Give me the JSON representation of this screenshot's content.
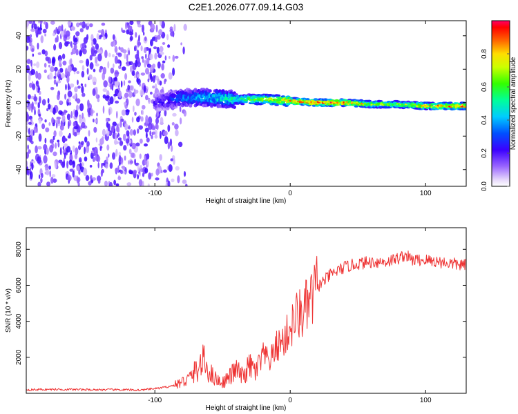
{
  "title": "C2E1.2026.077.09.14.G03",
  "chart_data": [
    {
      "type": "heatmap",
      "xlabel": "Height of straight line (km)",
      "ylabel": "Frequency (Hz)",
      "xlim": [
        -195,
        130
      ],
      "ylim": [
        -50,
        49
      ],
      "xticks": [
        -100,
        0,
        100
      ],
      "xtick_labels": [
        "-100",
        "0",
        "100"
      ],
      "yticks": [
        -40,
        -20,
        0,
        20,
        40
      ],
      "ytick_labels": [
        "-40",
        "-20",
        "0",
        "20",
        "40"
      ],
      "colorbar": {
        "label": "Normalized spectral amplitude",
        "range": [
          0,
          1
        ],
        "ticks": [
          0.0,
          0.2,
          0.4,
          0.6,
          0.8
        ],
        "tick_labels": [
          "0.0",
          "0.2",
          "0.4",
          "0.6",
          "0.8"
        ]
      },
      "ridge": {
        "x": [
          -100,
          -80,
          -60,
          -40,
          -20,
          0,
          20,
          40,
          60,
          80,
          100,
          130
        ],
        "freq": [
          0,
          3,
          3,
          2,
          2,
          1,
          0,
          0,
          -1,
          -1,
          -2,
          -2
        ],
        "peak_amplitude": [
          0.2,
          0.35,
          0.45,
          0.55,
          0.7,
          0.9,
          0.95,
          0.9,
          0.75,
          0.65,
          0.85,
          0.95
        ]
      },
      "noise_region_x": [
        -195,
        -80
      ]
    },
    {
      "type": "line",
      "xlabel": "Height of straight line (km)",
      "ylabel": "SNR (10 * v/v)",
      "xlim": [
        -195,
        130
      ],
      "ylim": [
        0,
        9200
      ],
      "xticks": [
        -100,
        0,
        100
      ],
      "xtick_labels": [
        "-100",
        "0",
        "100"
      ],
      "yticks": [
        2000,
        4000,
        6000,
        8000
      ],
      "ytick_labels": [
        "2000",
        "4000",
        "6000",
        "8000"
      ],
      "series": [
        {
          "name": "SNR",
          "color": "#ee3333",
          "x": [
            -195,
            -170,
            -150,
            -130,
            -110,
            -95,
            -85,
            -75,
            -68,
            -64,
            -60,
            -55,
            -50,
            -45,
            -40,
            -35,
            -30,
            -25,
            -20,
            -15,
            -10,
            -5,
            0,
            5,
            10,
            15,
            20,
            30,
            40,
            50,
            60,
            70,
            80,
            85,
            90,
            100,
            110,
            120,
            130
          ],
          "y": [
            200,
            220,
            200,
            200,
            180,
            300,
            450,
            800,
            1400,
            1800,
            1200,
            800,
            600,
            900,
            1300,
            900,
            1500,
            1200,
            2100,
            1800,
            2600,
            2900,
            3600,
            4300,
            4500,
            5100,
            5900,
            6600,
            7000,
            7200,
            7300,
            7300,
            7500,
            7700,
            7400,
            7400,
            7300,
            7200,
            7100
          ]
        }
      ]
    }
  ]
}
